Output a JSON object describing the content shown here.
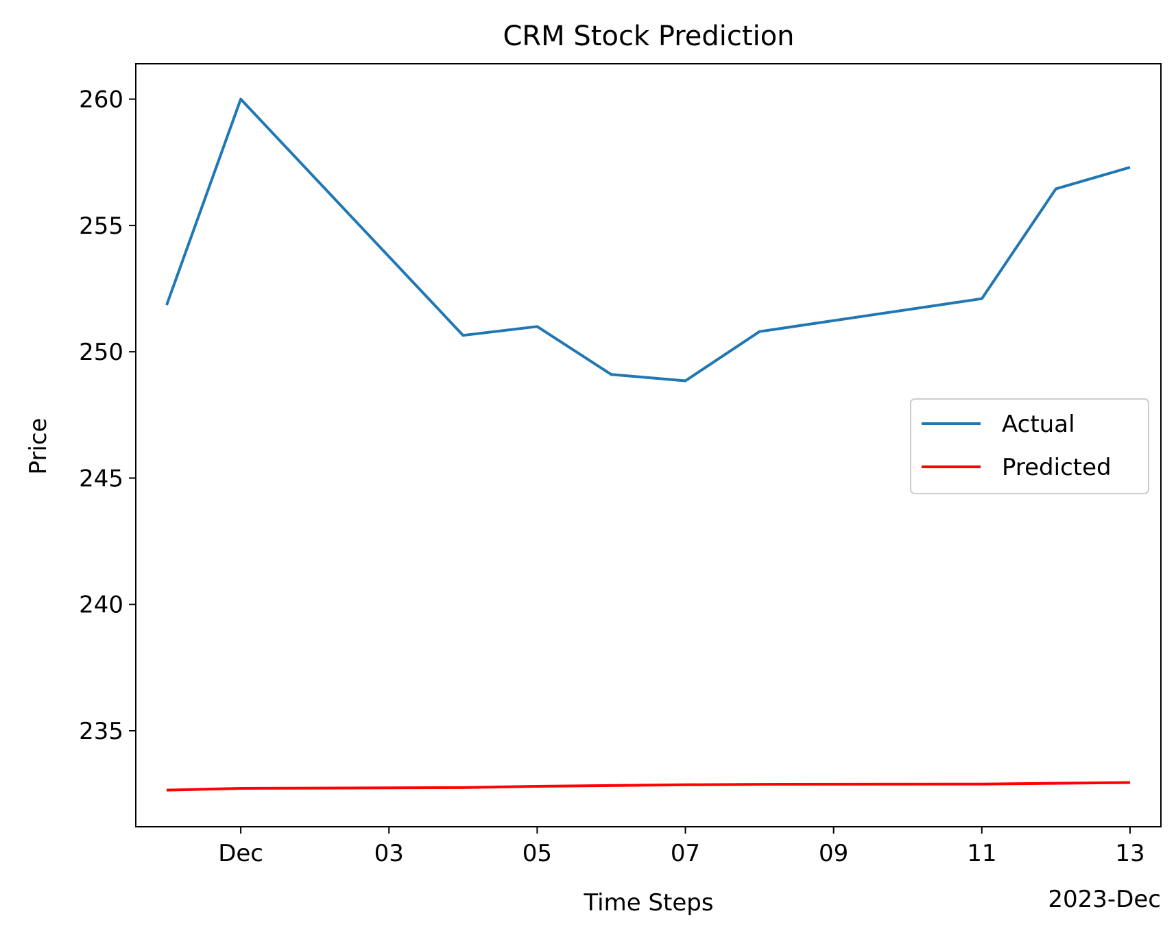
{
  "chart_data": {
    "type": "line",
    "title": "CRM Stock Prediction",
    "xlabel": "Time Steps",
    "ylabel": "Price",
    "x_offset_label": "2023-Dec",
    "x": [
      "2023-11-30",
      "2023-12-01",
      "2023-12-04",
      "2023-12-05",
      "2023-12-06",
      "2023-12-07",
      "2023-12-08",
      "2023-12-11",
      "2023-12-12",
      "2023-12-13"
    ],
    "xlim": [
      "2023-11-29 14:00",
      "2023-12-13 10:00"
    ],
    "ylim": [
      231.2,
      261.4
    ],
    "x_ticks": [
      {
        "date": "2023-12-01",
        "label": "Dec"
      },
      {
        "date": "2023-12-03",
        "label": "03"
      },
      {
        "date": "2023-12-05",
        "label": "05"
      },
      {
        "date": "2023-12-07",
        "label": "07"
      },
      {
        "date": "2023-12-09",
        "label": "09"
      },
      {
        "date": "2023-12-11",
        "label": "11"
      },
      {
        "date": "2023-12-13",
        "label": "13"
      }
    ],
    "y_ticks": [
      235,
      240,
      245,
      250,
      255,
      260
    ],
    "series": [
      {
        "name": "Actual",
        "color": "#1f77b4",
        "values": [
          251.85,
          260.0,
          250.65,
          251.0,
          249.1,
          248.85,
          250.8,
          252.1,
          256.45,
          257.3
        ]
      },
      {
        "name": "Predicted",
        "color": "#ff0000",
        "values": [
          232.65,
          232.72,
          232.75,
          232.8,
          232.83,
          232.86,
          232.88,
          232.89,
          232.92,
          232.95
        ]
      }
    ],
    "grid": false,
    "legend_position": "center-right"
  }
}
